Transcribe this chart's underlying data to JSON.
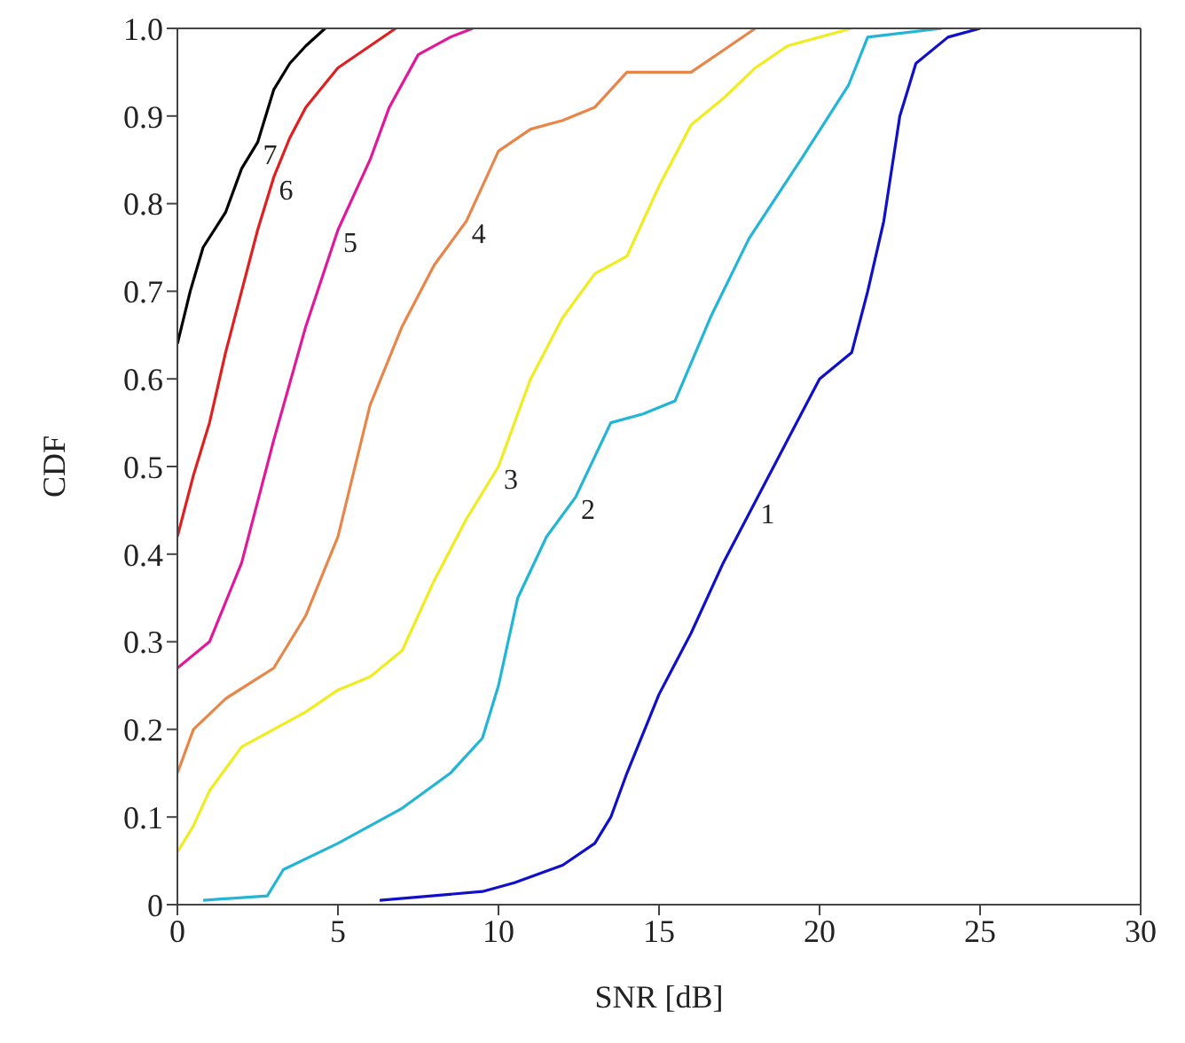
{
  "chart_data": {
    "type": "line",
    "xlabel": "SNR [dB]",
    "ylabel": "CDF",
    "xlim": [
      0,
      30
    ],
    "xticks": [
      0,
      5,
      10,
      15,
      20,
      25,
      30
    ],
    "ylim": [
      0,
      1
    ],
    "yticks": [
      0,
      0.1,
      0.2,
      0.3,
      0.4,
      0.5,
      0.6,
      0.7,
      0.8,
      0.9,
      {
        "value": 1,
        "label": "1.0"
      }
    ],
    "grid": false,
    "legend": false,
    "marker": "none",
    "line_style": "solid",
    "series": [
      {
        "name": "1",
        "color": "#1010c8",
        "x": [
          6.3,
          9.5,
          10.5,
          12,
          13,
          13.5,
          14,
          15,
          16,
          17,
          18,
          19,
          20,
          21,
          21.5,
          22,
          22.5,
          23,
          24,
          25
        ],
        "values": [
          0.005,
          0.015,
          0.025,
          0.045,
          0.07,
          0.1,
          0.15,
          0.24,
          0.31,
          0.39,
          0.46,
          0.53,
          0.6,
          0.63,
          0.7,
          0.78,
          0.9,
          0.96,
          0.99,
          1.0
        ]
      },
      {
        "name": "2",
        "color": "#22b5d6",
        "x": [
          0.8,
          2.8,
          3.3,
          5,
          7,
          8.5,
          9.5,
          10,
          10.6,
          11.5,
          12.4,
          13.5,
          14.5,
          15.5,
          16.6,
          17.8,
          19.5,
          20.9,
          21.5,
          23.8
        ],
        "values": [
          0.005,
          0.01,
          0.04,
          0.07,
          0.11,
          0.15,
          0.19,
          0.25,
          0.35,
          0.42,
          0.465,
          0.55,
          0.56,
          0.575,
          0.67,
          0.76,
          0.855,
          0.935,
          0.99,
          1.0
        ]
      },
      {
        "name": "3",
        "color": "#f0ec20",
        "x": [
          0,
          0.5,
          1,
          2,
          3,
          4,
          5,
          6,
          7,
          8,
          9,
          10,
          11,
          12,
          13,
          14,
          15,
          16,
          17,
          18,
          19,
          21
        ],
        "values": [
          0.06,
          0.09,
          0.13,
          0.18,
          0.2,
          0.22,
          0.245,
          0.26,
          0.29,
          0.37,
          0.44,
          0.5,
          0.6,
          0.67,
          0.72,
          0.74,
          0.82,
          0.89,
          0.92,
          0.955,
          0.98,
          1.0
        ]
      },
      {
        "name": "4",
        "color": "#e8864a",
        "x": [
          0,
          0.5,
          1.5,
          3,
          4,
          5,
          6,
          7,
          8,
          9,
          10,
          11,
          12,
          13,
          14,
          16,
          17,
          18
        ],
        "values": [
          0.15,
          0.2,
          0.235,
          0.27,
          0.33,
          0.42,
          0.57,
          0.66,
          0.73,
          0.78,
          0.86,
          0.885,
          0.895,
          0.91,
          0.95,
          0.95,
          0.975,
          1.0
        ]
      },
      {
        "name": "5",
        "color": "#e0189a",
        "x": [
          0,
          1,
          2,
          3,
          4,
          5,
          6,
          6.6,
          7.5,
          8.5,
          9.2
        ],
        "values": [
          0.27,
          0.3,
          0.39,
          0.53,
          0.66,
          0.77,
          0.85,
          0.91,
          0.97,
          0.99,
          1.0
        ]
      },
      {
        "name": "6",
        "color": "#e02020",
        "x": [
          0,
          0.5,
          1,
          1.5,
          2,
          2.5,
          3,
          3.5,
          4,
          5,
          6,
          6.8
        ],
        "values": [
          0.42,
          0.49,
          0.55,
          0.63,
          0.7,
          0.77,
          0.83,
          0.875,
          0.91,
          0.955,
          0.98,
          1.0
        ]
      },
      {
        "name": "7",
        "color": "#000000",
        "x": [
          0,
          0.4,
          0.8,
          1.5,
          2,
          2.5,
          3,
          3.5,
          4,
          4.6
        ],
        "values": [
          0.64,
          0.7,
          0.75,
          0.79,
          0.84,
          0.87,
          0.93,
          0.96,
          0.98,
          1.0
        ]
      }
    ]
  }
}
